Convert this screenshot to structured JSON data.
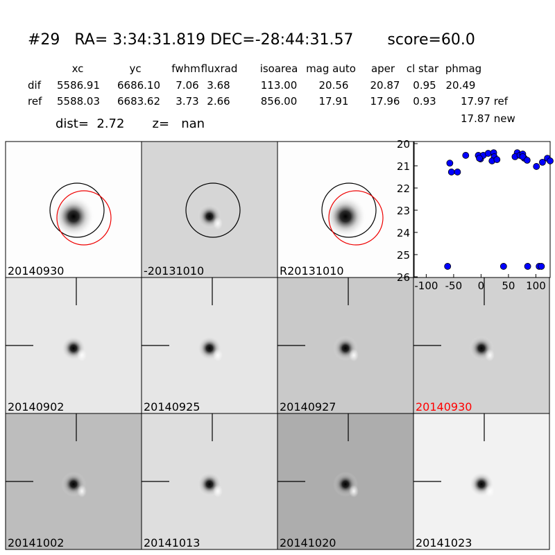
{
  "header": {
    "title": "#29   RA= 3:34:31.819 DEC=-28:44:31.57       score=60.0"
  },
  "table": {
    "columns": [
      "xc",
      "yc",
      "fwhm",
      "fluxrad",
      "isoarea",
      "mag auto",
      "aper",
      "cl star",
      "phmag"
    ],
    "rows": [
      [
        "dif",
        "5586.91",
        "6686.10",
        "7.06",
        "3.68",
        "113.00",
        "20.56",
        "20.87",
        "0.95",
        "20.49"
      ],
      [
        "ref",
        "5588.03",
        "6683.62",
        "3.73",
        "2.66",
        "856.00",
        "17.91",
        "17.96",
        "0.93",
        "17.97 ref"
      ]
    ],
    "extra": "17.87 new",
    "dist": "dist=  2.72       z=   nan"
  },
  "stamps": [
    "20140930",
    "-20131010",
    "R20131010",
    "20140902",
    "20140925",
    "20140927",
    "20140930",
    "20141002",
    "20141013",
    "20141020",
    "20141023"
  ],
  "chart_data": {
    "type": "scatter",
    "color": "#0000ff",
    "x": [
      -57,
      -54,
      -43,
      -28,
      -5,
      -1,
      4,
      -3,
      13,
      23,
      24,
      20,
      29,
      66,
      62,
      71,
      76,
      79,
      76,
      84,
      101,
      112,
      121,
      126,
      -61,
      41,
      85,
      106,
      110
    ],
    "values": [
      20.88,
      21.28,
      21.28,
      20.53,
      20.53,
      20.69,
      20.53,
      20.66,
      20.44,
      20.41,
      20.59,
      20.78,
      20.72,
      20.41,
      20.59,
      20.53,
      20.47,
      20.66,
      20.59,
      20.75,
      21.03,
      20.84,
      20.66,
      20.78,
      25.53,
      25.53,
      25.53,
      25.53,
      25.53
    ],
    "xlim": [
      -122,
      126
    ],
    "ylim": [
      26,
      20
    ],
    "xticks": [
      -100,
      -50,
      0,
      50,
      100
    ],
    "yticks": [
      20,
      21,
      22,
      23,
      24,
      25,
      26
    ]
  }
}
